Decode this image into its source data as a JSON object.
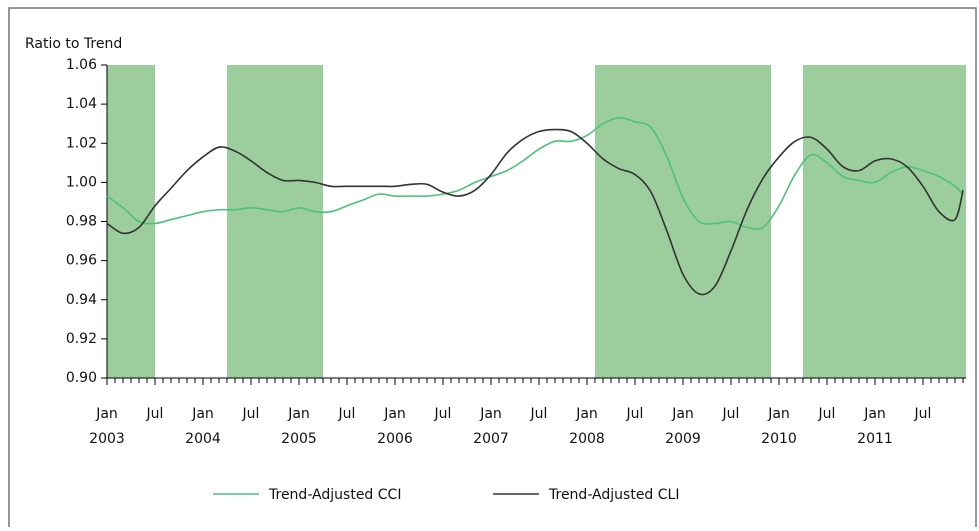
{
  "chart_data": {
    "type": "line",
    "y_label": "Ratio to Trend",
    "xlim": [
      "2003-01",
      "2011-12"
    ],
    "ylim": [
      0.9,
      1.06
    ],
    "yticks": [
      {
        "value": 0.9,
        "label": "0.90"
      },
      {
        "value": 0.92,
        "label": "0.92"
      },
      {
        "value": 0.94,
        "label": "0.94"
      },
      {
        "value": 0.96,
        "label": "0.96"
      },
      {
        "value": 0.98,
        "label": "0.98"
      },
      {
        "value": 1.0,
        "label": "1.00"
      },
      {
        "value": 1.02,
        "label": "1.02"
      },
      {
        "value": 1.04,
        "label": "1.04"
      },
      {
        "value": 1.06,
        "label": "1.06"
      }
    ],
    "xticks": [
      {
        "value": "2003-01",
        "label": "Jan"
      },
      {
        "value": "2003-07",
        "label": "Jul"
      },
      {
        "value": "2004-01",
        "label": "Jan"
      },
      {
        "value": "2004-07",
        "label": "Jul"
      },
      {
        "value": "2005-01",
        "label": "Jan"
      },
      {
        "value": "2005-07",
        "label": "Jul"
      },
      {
        "value": "2006-01",
        "label": "Jan"
      },
      {
        "value": "2006-07",
        "label": "Jul"
      },
      {
        "value": "2007-01",
        "label": "Jan"
      },
      {
        "value": "2007-07",
        "label": "Jul"
      },
      {
        "value": "2008-01",
        "label": "Jan"
      },
      {
        "value": "2008-07",
        "label": "Jul"
      },
      {
        "value": "2009-01",
        "label": "Jan"
      },
      {
        "value": "2009-07",
        "label": "Jul"
      },
      {
        "value": "2010-01",
        "label": "Jan"
      },
      {
        "value": "2010-07",
        "label": "Jul"
      },
      {
        "value": "2011-01",
        "label": "Jan"
      },
      {
        "value": "2011-07",
        "label": "Jul"
      }
    ],
    "xtick_years": [
      {
        "value": "2003-01",
        "label": "2003"
      },
      {
        "value": "2004-01",
        "label": "2004"
      },
      {
        "value": "2005-01",
        "label": "2005"
      },
      {
        "value": "2006-01",
        "label": "2006"
      },
      {
        "value": "2007-01",
        "label": "2007"
      },
      {
        "value": "2008-01",
        "label": "2008"
      },
      {
        "value": "2009-01",
        "label": "2009"
      },
      {
        "value": "2010-01",
        "label": "2010"
      },
      {
        "value": "2011-01",
        "label": "2011"
      }
    ],
    "shaded_periods": [
      {
        "start": "2003-01",
        "end": "2003-06"
      },
      {
        "start": "2004-04",
        "end": "2005-03"
      },
      {
        "start": "2008-02",
        "end": "2009-11"
      },
      {
        "start": "2010-04",
        "end": "2011-12"
      }
    ],
    "shade_color": "#9ccd9c",
    "legend": "bottom",
    "x": [
      "2003-01",
      "2003-03",
      "2003-05",
      "2003-07",
      "2003-09",
      "2003-11",
      "2004-01",
      "2004-03",
      "2004-05",
      "2004-07",
      "2004-09",
      "2004-11",
      "2005-01",
      "2005-03",
      "2005-05",
      "2005-07",
      "2005-09",
      "2005-11",
      "2006-01",
      "2006-03",
      "2006-05",
      "2006-07",
      "2006-09",
      "2006-11",
      "2007-01",
      "2007-03",
      "2007-05",
      "2007-07",
      "2007-09",
      "2007-11",
      "2008-01",
      "2008-03",
      "2008-05",
      "2008-07",
      "2008-09",
      "2008-11",
      "2009-01",
      "2009-03",
      "2009-05",
      "2009-07",
      "2009-09",
      "2009-11",
      "2010-01",
      "2010-03",
      "2010-05",
      "2010-07",
      "2010-09",
      "2010-11",
      "2011-01",
      "2011-03",
      "2011-05",
      "2011-07",
      "2011-09",
      "2011-11",
      "2011-12"
    ],
    "series": [
      {
        "name": "Trend-Adjusted CCI",
        "color": "#4cc27a",
        "values": [
          0.993,
          0.987,
          0.98,
          0.979,
          0.981,
          0.983,
          0.985,
          0.986,
          0.986,
          0.987,
          0.986,
          0.985,
          0.987,
          0.985,
          0.985,
          0.988,
          0.991,
          0.994,
          0.993,
          0.993,
          0.993,
          0.994,
          0.996,
          1.0,
          1.003,
          1.006,
          1.011,
          1.017,
          1.021,
          1.021,
          1.024,
          1.03,
          1.033,
          1.031,
          1.028,
          1.013,
          0.992,
          0.98,
          0.979,
          0.98,
          0.977,
          0.977,
          0.988,
          1.004,
          1.014,
          1.01,
          1.003,
          1.001,
          1.0,
          1.005,
          1.008,
          1.006,
          1.003,
          0.998,
          0.994
        ]
      },
      {
        "name": "Trend-Adjusted CLI",
        "color": "#333333",
        "values": [
          0.979,
          0.974,
          0.977,
          0.988,
          0.997,
          1.006,
          1.013,
          1.018,
          1.016,
          1.011,
          1.005,
          1.001,
          1.001,
          1.0,
          0.998,
          0.998,
          0.998,
          0.998,
          0.998,
          0.999,
          0.999,
          0.995,
          0.993,
          0.996,
          1.004,
          1.015,
          1.022,
          1.026,
          1.027,
          1.026,
          1.02,
          1.012,
          1.007,
          1.004,
          0.995,
          0.975,
          0.953,
          0.943,
          0.947,
          0.965,
          0.986,
          1.002,
          1.013,
          1.021,
          1.023,
          1.017,
          1.008,
          1.006,
          1.011,
          1.012,
          1.008,
          0.998,
          0.985,
          0.981,
          0.996
        ]
      }
    ]
  }
}
